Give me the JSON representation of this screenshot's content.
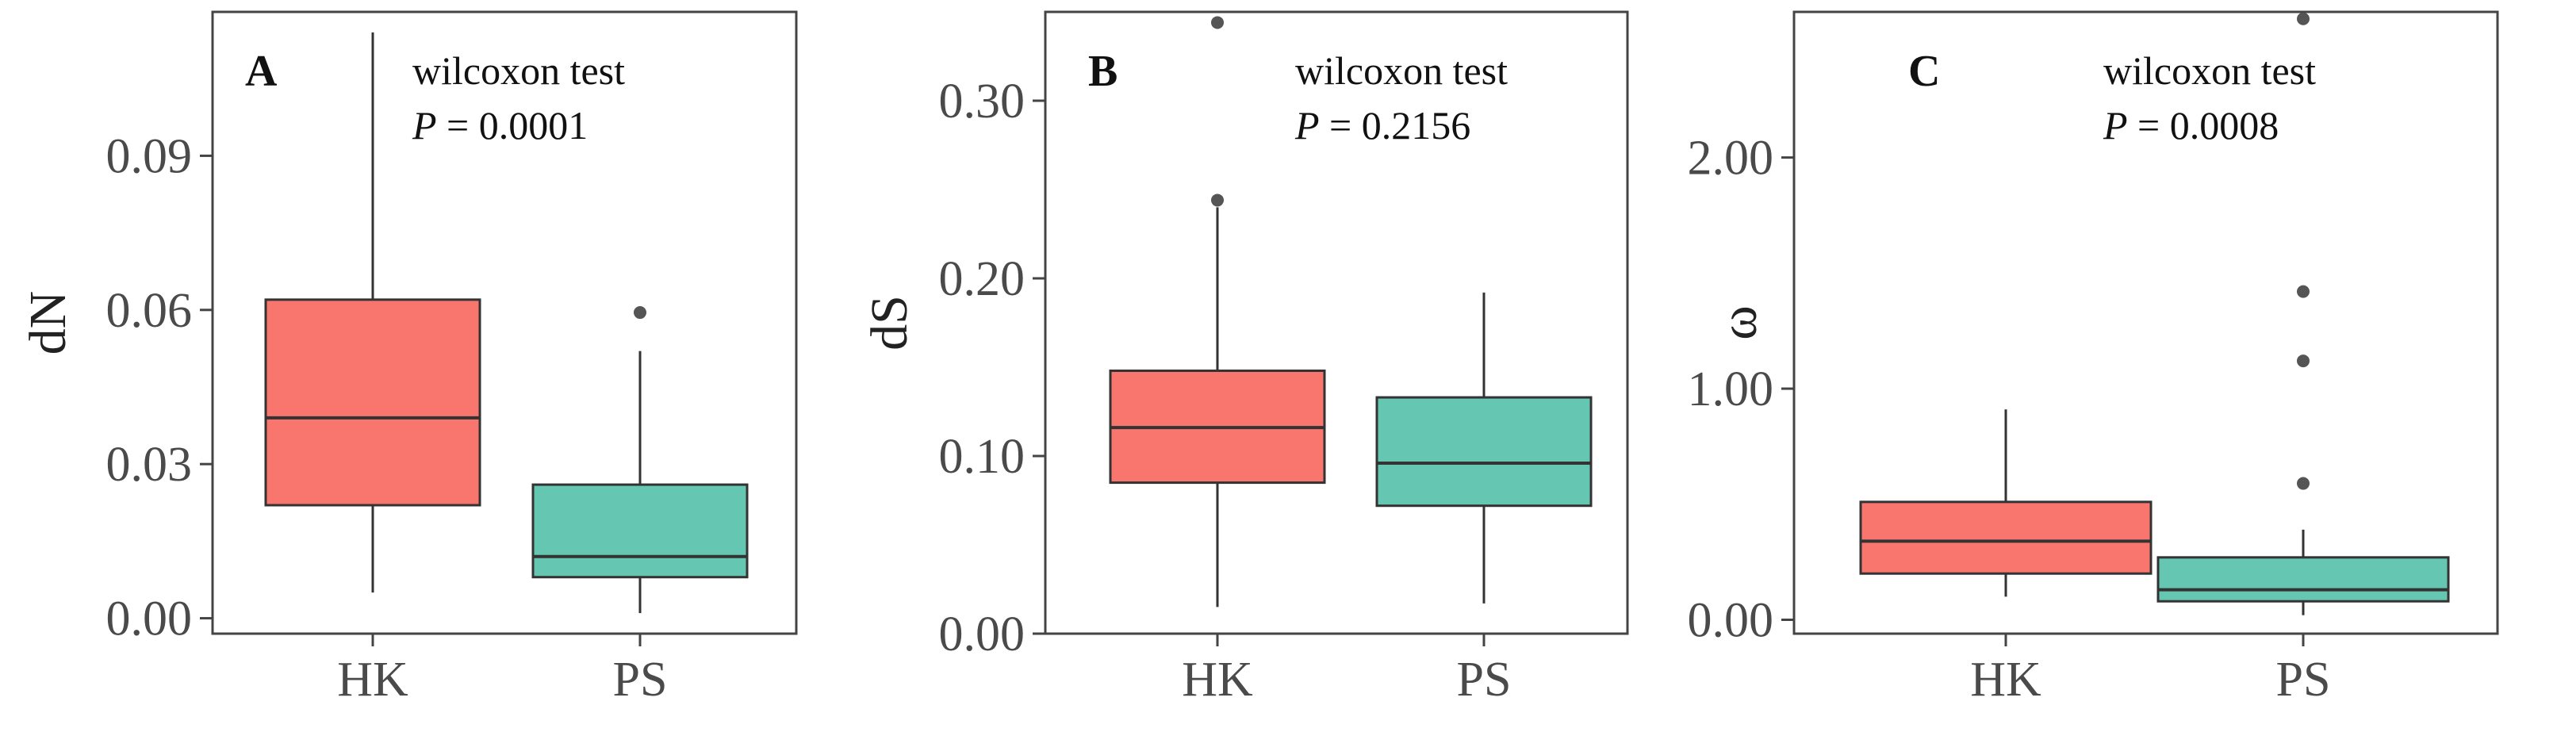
{
  "chart_data": [
    {
      "type": "boxplot",
      "panel_label": "A",
      "ylabel": "dN",
      "categories": [
        "HK",
        "PS"
      ],
      "ylim": [
        -0.003,
        0.118
      ],
      "yticks": [
        0.0,
        0.03,
        0.06,
        0.09
      ],
      "ytick_labels": [
        "0.00",
        "0.03",
        "0.06",
        "0.09"
      ],
      "annotation_test": "wilcoxon test",
      "annotation_p_label": "P",
      "annotation_p_value": "= 0.0001",
      "boxes": [
        {
          "category": "HK",
          "color": "#F8766D",
          "whisker_low": 0.005,
          "q1": 0.022,
          "median": 0.039,
          "q3": 0.062,
          "whisker_high": 0.114,
          "outliers": []
        },
        {
          "category": "PS",
          "color": "#65C6B2",
          "whisker_low": 0.001,
          "q1": 0.008,
          "median": 0.012,
          "q3": 0.026,
          "whisker_high": 0.052,
          "outliers": [
            0.0595
          ]
        }
      ]
    },
    {
      "type": "boxplot",
      "panel_label": "B",
      "ylabel": "dS",
      "categories": [
        "HK",
        "PS"
      ],
      "ylim": [
        0.0,
        0.35
      ],
      "yticks": [
        0.0,
        0.1,
        0.2,
        0.3
      ],
      "ytick_labels": [
        "0.00",
        "0.10",
        "0.20",
        "0.30"
      ],
      "annotation_test": "wilcoxon test",
      "annotation_p_label": "P",
      "annotation_p_value": "= 0.2156",
      "boxes": [
        {
          "category": "HK",
          "color": "#F8766D",
          "whisker_low": 0.015,
          "q1": 0.085,
          "median": 0.116,
          "q3": 0.148,
          "whisker_high": 0.24,
          "outliers": [
            0.244,
            0.344
          ]
        },
        {
          "category": "PS",
          "color": "#65C6B2",
          "whisker_low": 0.017,
          "q1": 0.072,
          "median": 0.096,
          "q3": 0.133,
          "whisker_high": 0.192,
          "outliers": []
        }
      ]
    },
    {
      "type": "boxplot",
      "panel_label": "C",
      "ylabel": "ω",
      "categories": [
        "HK",
        "PS"
      ],
      "ylim": [
        -0.06,
        2.63
      ],
      "yticks": [
        0.0,
        1.0,
        2.0
      ],
      "ytick_labels": [
        "0.00",
        "1.00",
        "2.00"
      ],
      "annotation_test": "wilcoxon test",
      "annotation_p_label": "P",
      "annotation_p_value": "= 0.0008",
      "boxes": [
        {
          "category": "HK",
          "color": "#F8766D",
          "whisker_low": 0.1,
          "q1": 0.2,
          "median": 0.34,
          "q3": 0.51,
          "whisker_high": 0.91,
          "outliers": []
        },
        {
          "category": "PS",
          "color": "#65C6B2",
          "whisker_low": 0.02,
          "q1": 0.08,
          "median": 0.13,
          "q3": 0.27,
          "whisker_high": 0.39,
          "outliers": [
            0.59,
            1.12,
            1.42,
            2.6
          ]
        }
      ]
    }
  ]
}
